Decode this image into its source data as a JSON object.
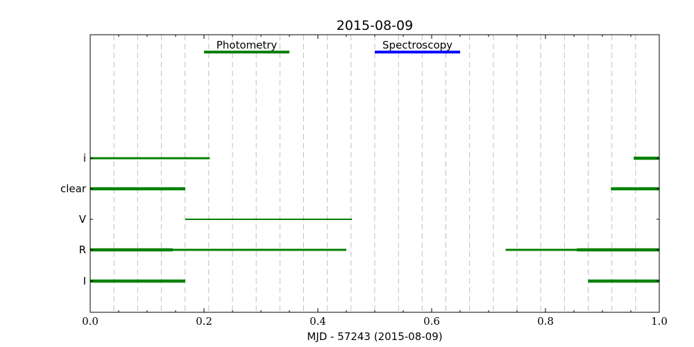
{
  "chart_data": {
    "type": "timeline",
    "title": "2015-08-09",
    "xlabel": "MJD - 57243 (2015-08-09)",
    "xlim": [
      0.0,
      1.0
    ],
    "x_ticks": [
      "0.0",
      "0.2",
      "0.4",
      "0.6",
      "0.8",
      "1.0"
    ],
    "x_tick_values": [
      0.0,
      0.2,
      0.4,
      0.6,
      0.8,
      1.0
    ],
    "grid": "vertical dashed lines, hourly",
    "grid_interval": 0.0417,
    "categories": [
      "i",
      "clear",
      "V",
      "R",
      "I"
    ],
    "legend": [
      {
        "label": "Photometry",
        "color": "#008000",
        "x_start": 0.2,
        "x_end": 0.35
      },
      {
        "label": "Spectroscopy",
        "color": "#0000ff",
        "x_start": 0.5,
        "x_end": 0.65
      }
    ],
    "series_color": "#008000",
    "segments": [
      {
        "filter": "i",
        "start": 0.0,
        "end": 0.21,
        "weight": "medium"
      },
      {
        "filter": "i",
        "start": 0.955,
        "end": 1.0,
        "weight": "thick"
      },
      {
        "filter": "clear",
        "start": 0.0,
        "end": 0.167,
        "weight": "thick"
      },
      {
        "filter": "clear",
        "start": 0.915,
        "end": 1.0,
        "weight": "thick"
      },
      {
        "filter": "V",
        "start": 0.167,
        "end": 0.46,
        "weight": "thin"
      },
      {
        "filter": "R",
        "start": 0.0,
        "end": 0.145,
        "weight": "thick"
      },
      {
        "filter": "R",
        "start": 0.0,
        "end": 0.45,
        "weight": "medium"
      },
      {
        "filter": "R",
        "start": 0.73,
        "end": 1.0,
        "weight": "medium"
      },
      {
        "filter": "R",
        "start": 0.855,
        "end": 1.0,
        "weight": "thick"
      },
      {
        "filter": "I",
        "start": 0.0,
        "end": 0.167,
        "weight": "thick"
      },
      {
        "filter": "I",
        "start": 0.875,
        "end": 1.0,
        "weight": "thick"
      }
    ]
  }
}
